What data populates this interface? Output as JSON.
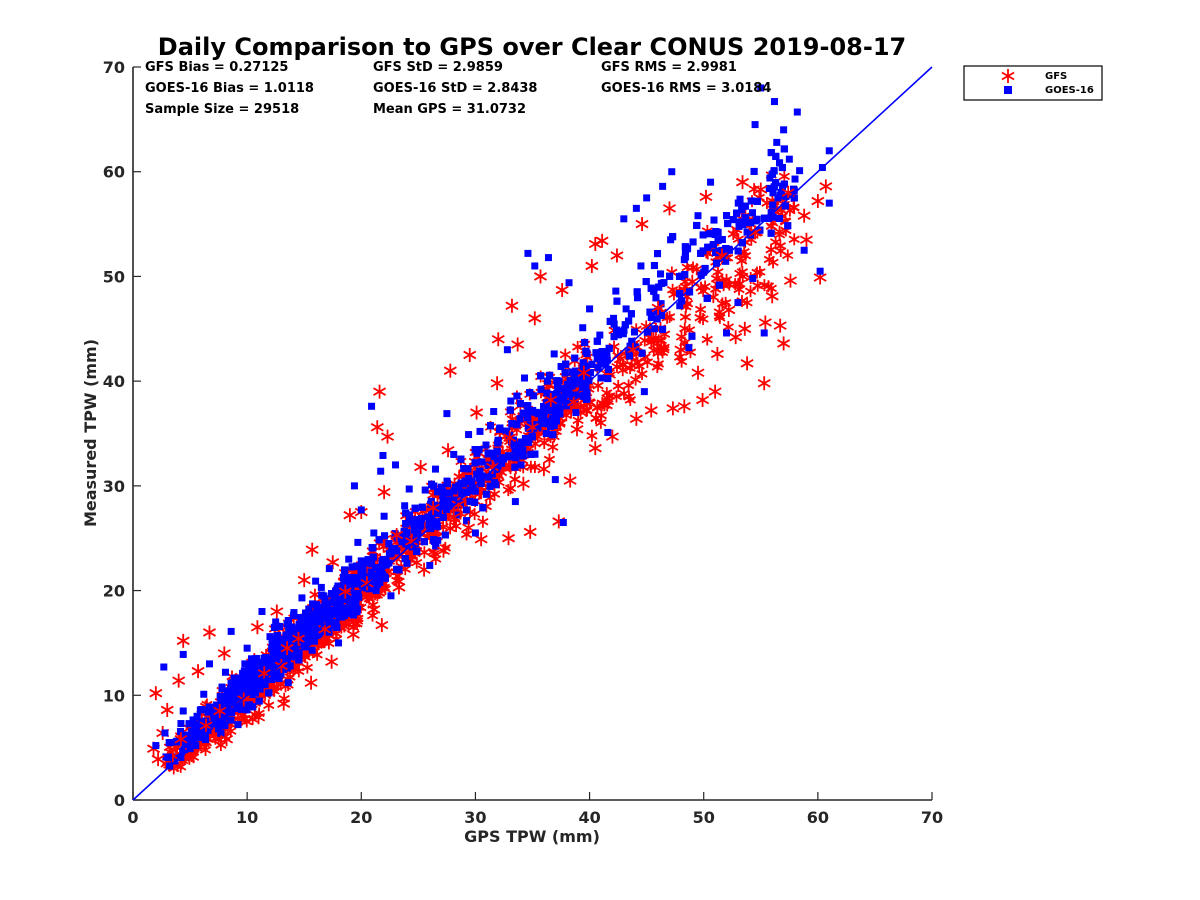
{
  "chart_data": {
    "type": "scatter",
    "title": "Daily Comparison to GPS over Clear CONUS 2019-08-17",
    "xlabel": "GPS TPW (mm)",
    "ylabel": "Measured TPW (mm)",
    "xlim": [
      0,
      70
    ],
    "ylim": [
      0,
      70
    ],
    "xticks": [
      "0",
      "10",
      "20",
      "30",
      "40",
      "50",
      "60",
      "70"
    ],
    "yticks": [
      "0",
      "10",
      "20",
      "30",
      "40",
      "50",
      "60",
      "70"
    ],
    "reference_line": {
      "name": "1:1 line",
      "from": [
        0,
        0
      ],
      "to": [
        70,
        70
      ],
      "color": "#0000ff"
    },
    "stats": [
      "GFS Bias = 0.27125",
      "GFS StD = 2.9859",
      "GFS RMS = 2.9981",
      "GOES-16 Bias = 1.0118",
      "GOES-16 StD = 2.8438",
      "GOES-16 RMS = 3.0184",
      "Sample Size = 29518",
      "Mean GPS = 31.0732"
    ],
    "legend_position": "outside-top-right",
    "series": [
      {
        "name": "GFS",
        "marker": "asterisk",
        "color": "#ff0000",
        "points": [
          [
            4.4,
            15.2
          ],
          [
            21.6,
            39.0
          ],
          [
            21.4,
            35.6
          ],
          [
            22.3,
            34.7
          ],
          [
            19.0,
            27.2
          ],
          [
            15.7,
            23.9
          ],
          [
            21.8,
            16.7
          ],
          [
            13.5,
            14.5
          ],
          [
            6.7,
            16.0
          ],
          [
            2.0,
            10.2
          ],
          [
            37.3,
            26.6
          ],
          [
            34.8,
            25.6
          ],
          [
            32.9,
            25.0
          ],
          [
            41.1,
            53.4
          ],
          [
            40.5,
            53.1
          ],
          [
            35.7,
            50.0
          ],
          [
            33.2,
            47.2
          ],
          [
            32.0,
            44.0
          ],
          [
            29.5,
            42.5
          ],
          [
            27.8,
            41.0
          ],
          [
            47.3,
            37.4
          ],
          [
            48.3,
            37.6
          ],
          [
            49.9,
            38.2
          ],
          [
            51.0,
            39.0
          ],
          [
            55.3,
            39.8
          ],
          [
            53.8,
            41.7
          ],
          [
            57.0,
            43.6
          ],
          [
            56.7,
            45.3
          ],
          [
            60.2,
            49.9
          ],
          [
            57.6,
            49.6
          ],
          [
            60.7,
            58.6
          ],
          [
            58.8,
            55.8
          ],
          [
            60.0,
            57.2
          ],
          [
            59.0,
            53.5
          ],
          [
            56.0,
            48.1
          ],
          [
            52.2,
            46.8
          ],
          [
            53.6,
            45.0
          ],
          [
            45.4,
            37.2
          ],
          [
            44.1,
            36.4
          ],
          [
            42.0,
            34.7
          ],
          [
            40.5,
            33.6
          ],
          [
            38.3,
            30.5
          ],
          [
            36.0,
            31.6
          ],
          [
            34.2,
            30.2
          ],
          [
            28.1,
            27.0
          ],
          [
            27.2,
            23.8
          ],
          [
            25.5,
            22.0
          ],
          [
            23.3,
            20.3
          ],
          [
            21.1,
            18.2
          ],
          [
            19.3,
            15.8
          ],
          [
            17.4,
            13.2
          ],
          [
            15.6,
            11.2
          ],
          [
            13.2,
            9.2
          ],
          [
            11.0,
            7.9
          ],
          [
            8.2,
            5.8
          ],
          [
            5.1,
            4.6
          ],
          [
            3.5,
            4.2
          ],
          [
            1.8,
            4.9
          ],
          [
            2.6,
            6.4
          ],
          [
            3.0,
            8.6
          ],
          [
            4.0,
            11.4
          ],
          [
            5.7,
            12.3
          ],
          [
            8.0,
            14.0
          ],
          [
            10.9,
            16.5
          ],
          [
            12.6,
            18.0
          ],
          [
            15.0,
            21.0
          ],
          [
            17.5,
            22.7
          ],
          [
            20.0,
            27.5
          ],
          [
            22.0,
            29.4
          ],
          [
            25.2,
            31.8
          ],
          [
            27.6,
            33.4
          ],
          [
            30.1,
            37.0
          ],
          [
            31.9,
            39.8
          ],
          [
            33.7,
            43.5
          ],
          [
            35.2,
            46.0
          ],
          [
            37.6,
            48.7
          ],
          [
            40.2,
            51.0
          ],
          [
            42.4,
            52.0
          ],
          [
            44.6,
            55.0
          ],
          [
            47.0,
            56.5
          ],
          [
            50.2,
            57.6
          ],
          [
            53.4,
            59.0
          ],
          [
            55.0,
            58.3
          ],
          [
            57.4,
            58.0
          ],
          [
            46.0,
            47.0
          ],
          [
            42.7,
            42.1
          ],
          [
            38.6,
            38.0
          ],
          [
            35.0,
            35.6
          ],
          [
            31.5,
            31.8
          ],
          [
            28.5,
            28.2
          ],
          [
            24.4,
            24.7
          ],
          [
            20.5,
            20.7
          ],
          [
            16.8,
            16.3
          ],
          [
            13.0,
            12.8
          ],
          [
            9.7,
            9.6
          ],
          [
            6.4,
            7.1
          ],
          [
            4.2,
            5.8
          ],
          [
            2.2,
            3.9
          ],
          [
            49.0,
            49.5
          ],
          [
            51.6,
            52.0
          ],
          [
            54.5,
            54.2
          ],
          [
            43.8,
            43.0
          ],
          [
            39.5,
            40.8
          ],
          [
            36.6,
            38.2
          ],
          [
            33.0,
            34.6
          ],
          [
            26.3,
            27.9
          ],
          [
            23.1,
            25.3
          ],
          [
            18.6,
            19.9
          ],
          [
            14.5,
            15.4
          ],
          [
            11.5,
            12.1
          ],
          [
            7.6,
            8.5
          ],
          [
            45.6,
            44.0
          ],
          [
            48.0,
            43.0
          ],
          [
            51.2,
            42.6
          ],
          [
            52.8,
            44.2
          ],
          [
            55.4,
            45.6
          ],
          [
            49.5,
            40.8
          ],
          [
            38.9,
            35.4
          ],
          [
            29.4,
            26.0
          ],
          [
            30.5,
            24.9
          ]
        ]
      },
      {
        "name": "GOES-16",
        "marker": "square",
        "color": "#0000ff",
        "points": [
          [
            55.0,
            68.0
          ],
          [
            56.2,
            66.7
          ],
          [
            58.2,
            65.7
          ],
          [
            57.0,
            64.0
          ],
          [
            56.4,
            62.8
          ],
          [
            61.0,
            62.0
          ],
          [
            60.4,
            60.4
          ],
          [
            54.5,
            64.5
          ],
          [
            47.2,
            60.0
          ],
          [
            45.0,
            57.5
          ],
          [
            44.1,
            56.5
          ],
          [
            36.4,
            51.8
          ],
          [
            35.2,
            51.0
          ],
          [
            34.6,
            52.2
          ],
          [
            20.9,
            37.6
          ],
          [
            21.9,
            32.9
          ],
          [
            21.7,
            31.4
          ],
          [
            19.4,
            30.0
          ],
          [
            4.4,
            13.9
          ],
          [
            2.7,
            12.7
          ],
          [
            33.5,
            28.5
          ],
          [
            37.7,
            26.5
          ],
          [
            53.0,
            47.5
          ],
          [
            52.0,
            44.6
          ],
          [
            54.3,
            49.8
          ],
          [
            60.2,
            50.5
          ],
          [
            55.3,
            44.6
          ],
          [
            58.8,
            52.5
          ],
          [
            61.0,
            57.0
          ],
          [
            58.4,
            60.1
          ],
          [
            42.1,
            46.0
          ],
          [
            40.0,
            46.9
          ],
          [
            37.5,
            41.4
          ],
          [
            35.1,
            38.6
          ],
          [
            33.1,
            38.1
          ],
          [
            30.4,
            35.2
          ],
          [
            28.1,
            33.0
          ],
          [
            25.6,
            29.6
          ],
          [
            23.8,
            28.1
          ],
          [
            21.1,
            25.5
          ],
          [
            18.9,
            23.0
          ],
          [
            16.5,
            20.3
          ],
          [
            14.1,
            17.9
          ],
          [
            12.0,
            15.6
          ],
          [
            9.8,
            13.0
          ],
          [
            7.8,
            10.6
          ],
          [
            5.9,
            8.6
          ],
          [
            4.2,
            7.3
          ],
          [
            2.8,
            6.4
          ],
          [
            2.0,
            5.2
          ],
          [
            3.1,
            4.1
          ],
          [
            5.0,
            4.9
          ],
          [
            7.5,
            6.8
          ],
          [
            10.2,
            9.1
          ],
          [
            12.8,
            11.6
          ],
          [
            15.7,
            14.3
          ],
          [
            18.4,
            17.6
          ],
          [
            21.3,
            20.0
          ],
          [
            24.0,
            22.6
          ],
          [
            26.7,
            24.8
          ],
          [
            29.2,
            27.7
          ],
          [
            31.8,
            30.1
          ],
          [
            34.0,
            32.0
          ],
          [
            36.2,
            35.0
          ],
          [
            38.8,
            37.0
          ],
          [
            41.0,
            40.3
          ],
          [
            43.5,
            42.4
          ],
          [
            45.7,
            45.0
          ],
          [
            47.9,
            47.2
          ],
          [
            50.0,
            50.4
          ],
          [
            52.2,
            52.6
          ],
          [
            54.6,
            55.3
          ],
          [
            56.5,
            57.5
          ],
          [
            58.0,
            59.3
          ],
          [
            49.5,
            55.8
          ],
          [
            47.1,
            53.5
          ],
          [
            44.5,
            51.0
          ],
          [
            42.3,
            48.6
          ],
          [
            39.4,
            45.1
          ],
          [
            36.9,
            42.6
          ],
          [
            34.3,
            40.3
          ],
          [
            31.6,
            37.1
          ],
          [
            29.4,
            34.9
          ],
          [
            26.5,
            31.6
          ],
          [
            24.2,
            29.7
          ],
          [
            22.0,
            27.1
          ],
          [
            19.7,
            24.6
          ],
          [
            17.2,
            22.1
          ],
          [
            14.8,
            19.3
          ],
          [
            12.5,
            17.0
          ],
          [
            10.0,
            14.5
          ],
          [
            8.1,
            12.2
          ],
          [
            6.2,
            10.1
          ],
          [
            4.4,
            8.5
          ],
          [
            40.9,
            44.4
          ],
          [
            43.2,
            46.9
          ],
          [
            45.6,
            48.7
          ],
          [
            48.3,
            51.6
          ],
          [
            51.0,
            54.0
          ],
          [
            53.5,
            56.7
          ],
          [
            55.8,
            59.4
          ],
          [
            57.5,
            61.2
          ],
          [
            50.6,
            59.0
          ],
          [
            46.4,
            58.6
          ],
          [
            43.0,
            55.5
          ],
          [
            38.2,
            49.4
          ],
          [
            32.8,
            43.0
          ],
          [
            27.5,
            36.9
          ],
          [
            23.0,
            32.0
          ],
          [
            20.0,
            27.7
          ],
          [
            16.0,
            20.9
          ],
          [
            11.3,
            18.0
          ],
          [
            8.6,
            16.1
          ],
          [
            6.7,
            13.0
          ],
          [
            37.0,
            30.6
          ],
          [
            41.6,
            35.1
          ],
          [
            44.8,
            39.0
          ],
          [
            48.7,
            43.2
          ],
          [
            30.0,
            25.5
          ],
          [
            26.0,
            22.4
          ],
          [
            22.6,
            19.5
          ],
          [
            18.0,
            15.0
          ],
          [
            13.6,
            11.2
          ],
          [
            9.2,
            7.2
          ],
          [
            5.5,
            5.2
          ]
        ]
      }
    ]
  }
}
